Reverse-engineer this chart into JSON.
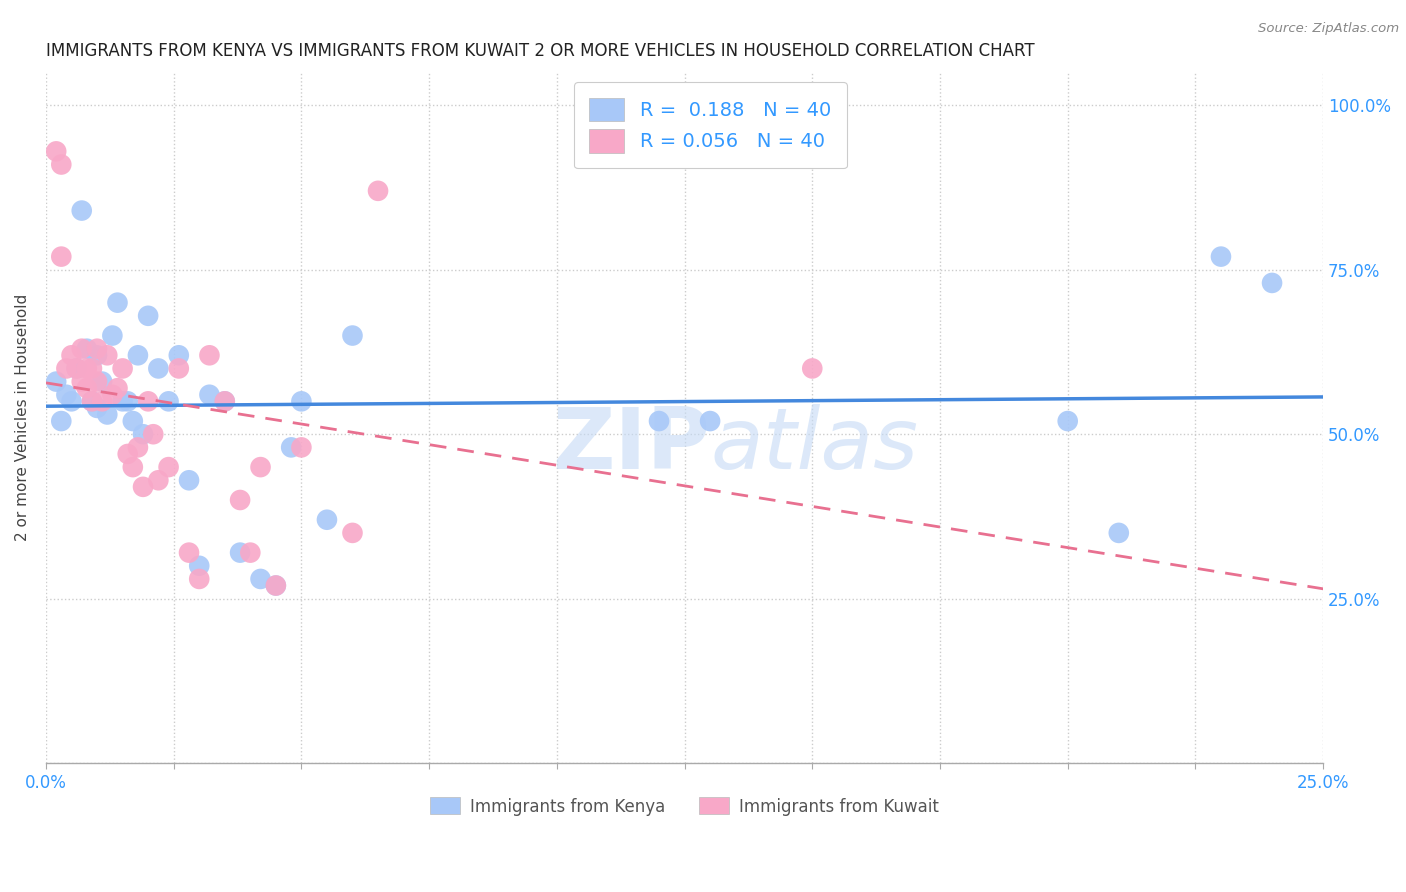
{
  "title": "IMMIGRANTS FROM KENYA VS IMMIGRANTS FROM KUWAIT 2 OR MORE VEHICLES IN HOUSEHOLD CORRELATION CHART",
  "source": "Source: ZipAtlas.com",
  "ylabel": "2 or more Vehicles in Household",
  "xaxis_label_kenya": "Immigrants from Kenya",
  "xaxis_label_kuwait": "Immigrants from Kuwait",
  "xlim": [
    0.0,
    0.25
  ],
  "ylim": [
    0.0,
    1.05
  ],
  "kenya_R": "0.188",
  "kenya_N": "40",
  "kuwait_R": "0.056",
  "kuwait_N": "40",
  "kenya_color": "#a8c8f8",
  "kuwait_color": "#f8a8c8",
  "kenya_line_color": "#4488dd",
  "kuwait_line_color": "#e87090",
  "kenya_scatter_x": [
    0.002,
    0.003,
    0.004,
    0.005,
    0.006,
    0.007,
    0.008,
    0.009,
    0.01,
    0.01,
    0.011,
    0.012,
    0.013,
    0.014,
    0.015,
    0.016,
    0.017,
    0.018,
    0.019,
    0.02,
    0.022,
    0.024,
    0.026,
    0.028,
    0.03,
    0.032,
    0.035,
    0.038,
    0.042,
    0.045,
    0.048,
    0.05,
    0.055,
    0.06,
    0.12,
    0.13,
    0.2,
    0.21,
    0.23,
    0.24
  ],
  "kenya_scatter_y": [
    0.58,
    0.52,
    0.56,
    0.55,
    0.6,
    0.84,
    0.63,
    0.55,
    0.54,
    0.62,
    0.58,
    0.53,
    0.65,
    0.7,
    0.55,
    0.55,
    0.52,
    0.62,
    0.5,
    0.68,
    0.6,
    0.55,
    0.62,
    0.43,
    0.3,
    0.56,
    0.55,
    0.32,
    0.28,
    0.27,
    0.48,
    0.55,
    0.37,
    0.65,
    0.52,
    0.52,
    0.52,
    0.35,
    0.77,
    0.73
  ],
  "kuwait_scatter_x": [
    0.002,
    0.003,
    0.003,
    0.004,
    0.005,
    0.006,
    0.007,
    0.007,
    0.008,
    0.008,
    0.009,
    0.009,
    0.01,
    0.01,
    0.011,
    0.012,
    0.013,
    0.014,
    0.015,
    0.016,
    0.017,
    0.018,
    0.019,
    0.02,
    0.021,
    0.022,
    0.024,
    0.026,
    0.028,
    0.03,
    0.032,
    0.035,
    0.038,
    0.04,
    0.042,
    0.045,
    0.05,
    0.06,
    0.065,
    0.15
  ],
  "kuwait_scatter_y": [
    0.93,
    0.91,
    0.77,
    0.6,
    0.62,
    0.6,
    0.63,
    0.58,
    0.6,
    0.57,
    0.55,
    0.6,
    0.58,
    0.63,
    0.55,
    0.62,
    0.56,
    0.57,
    0.6,
    0.47,
    0.45,
    0.48,
    0.42,
    0.55,
    0.5,
    0.43,
    0.45,
    0.6,
    0.32,
    0.28,
    0.62,
    0.55,
    0.4,
    0.32,
    0.45,
    0.27,
    0.48,
    0.35,
    0.87,
    0.6
  ],
  "watermark_zip": "ZIP",
  "watermark_atlas": "atlas",
  "background_color": "#ffffff",
  "grid_color": "#cccccc"
}
